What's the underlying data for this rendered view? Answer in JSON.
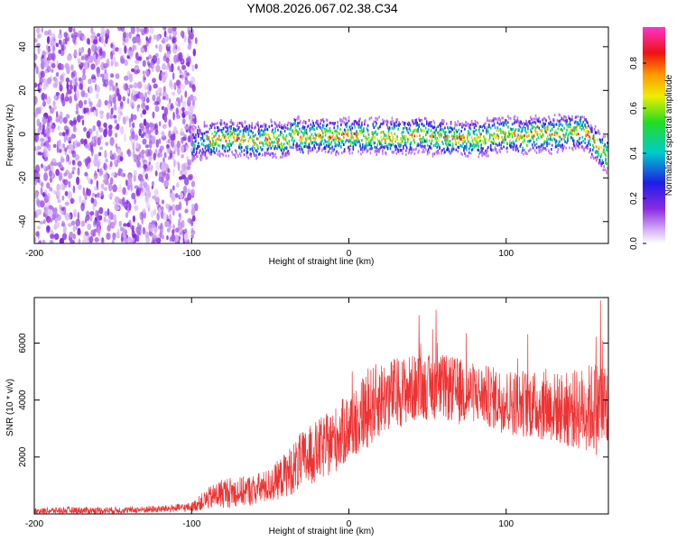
{
  "title": "YM08.2026.067.02.38.C34",
  "chart_data": [
    {
      "type": "heatmap",
      "name": "spectrogram",
      "xlabel": "Height of straight line (km)",
      "ylabel": "Frequency (Hz)",
      "xlim": [
        -200,
        165
      ],
      "ylim": [
        -50,
        49
      ],
      "x_ticks": [
        -200,
        -100,
        0,
        100
      ],
      "y_ticks": [
        -40,
        -20,
        0,
        20,
        40
      ],
      "colorbar": {
        "label": "Normalized spectral amplitude",
        "range": [
          0,
          0.96
        ],
        "ticks": [
          "0.0",
          "0.2",
          "0.4",
          "0.6",
          "0.8"
        ]
      },
      "regions": [
        {
          "name": "broadband noise",
          "x_range": [
            -200,
            -97
          ],
          "freq_range": [
            -50,
            49
          ],
          "amplitude": 0.05
        },
        {
          "name": "carrier band",
          "x_range": [
            -100,
            165
          ],
          "center_hz": 0,
          "half_width_hz": 5,
          "amplitude_peak": 0.9
        }
      ],
      "carrier_track": [
        {
          "x": -100,
          "f": -4
        },
        {
          "x": -90,
          "f": -3
        },
        {
          "x": -80,
          "f": -2
        },
        {
          "x": -70,
          "f": -2
        },
        {
          "x": -60,
          "f": -3
        },
        {
          "x": -50,
          "f": -2
        },
        {
          "x": -40,
          "f": -3
        },
        {
          "x": -35,
          "f": 1
        },
        {
          "x": -30,
          "f": -2
        },
        {
          "x": -20,
          "f": 0
        },
        {
          "x": -10,
          "f": -1
        },
        {
          "x": 0,
          "f": -1
        },
        {
          "x": 10,
          "f": -1
        },
        {
          "x": 20,
          "f": -1
        },
        {
          "x": 30,
          "f": -1
        },
        {
          "x": 40,
          "f": -1
        },
        {
          "x": 45,
          "f": 1
        },
        {
          "x": 50,
          "f": -1
        },
        {
          "x": 60,
          "f": -2
        },
        {
          "x": 70,
          "f": -2
        },
        {
          "x": 80,
          "f": -2
        },
        {
          "x": 90,
          "f": -1
        },
        {
          "x": 100,
          "f": 0
        },
        {
          "x": 110,
          "f": -1
        },
        {
          "x": 120,
          "f": 0
        },
        {
          "x": 130,
          "f": 0
        },
        {
          "x": 140,
          "f": 1
        },
        {
          "x": 150,
          "f": 1
        },
        {
          "x": 160,
          "f": -8
        },
        {
          "x": 165,
          "f": -10
        }
      ]
    },
    {
      "type": "line",
      "name": "snr",
      "xlabel": "Height of straight line (km)",
      "ylabel": "SNR (10 * v/v)",
      "xlim": [
        -200,
        165
      ],
      "ylim": [
        0,
        7600
      ],
      "x_ticks": [
        -200,
        -100,
        0,
        100
      ],
      "y_ticks": [
        2000,
        4000,
        6000
      ],
      "color": "#ee3333",
      "series": [
        {
          "name": "SNR envelope",
          "x": [
            -200,
            -180,
            -160,
            -140,
            -120,
            -100,
            -90,
            -80,
            -70,
            -60,
            -50,
            -40,
            -30,
            -20,
            -10,
            0,
            10,
            20,
            30,
            40,
            50,
            60,
            70,
            80,
            90,
            100,
            110,
            120,
            130,
            140,
            150,
            160,
            165
          ],
          "low": [
            0,
            0,
            0,
            20,
            40,
            80,
            150,
            200,
            250,
            300,
            400,
            600,
            800,
            1100,
            1400,
            1800,
            2200,
            2700,
            3000,
            3200,
            3300,
            3300,
            3100,
            3200,
            3000,
            2800,
            2700,
            2600,
            2500,
            2300,
            2200,
            2000,
            1800
          ],
          "high": [
            200,
            250,
            250,
            250,
            300,
            400,
            900,
            1300,
            1300,
            1400,
            1600,
            2200,
            2900,
            3300,
            3700,
            4300,
            5000,
            5400,
            5500,
            5600,
            5600,
            5600,
            5500,
            5300,
            5200,
            5100,
            5100,
            5000,
            5000,
            5000,
            5200,
            5500,
            5500
          ],
          "max_spike": {
            "x": 160,
            "y": 7500
          }
        }
      ]
    }
  ]
}
